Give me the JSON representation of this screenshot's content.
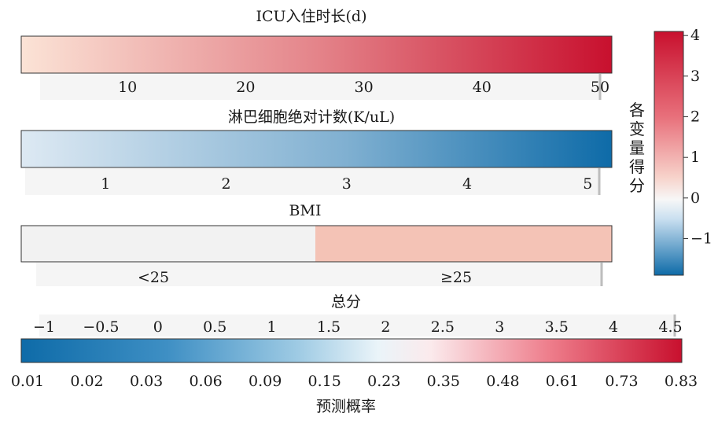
{
  "chart_data": {
    "type": "heatmap",
    "variables": [
      {
        "title": "ICU入住时长(d)",
        "scale": "continuous",
        "range": [
          1,
          51
        ],
        "ticks": [
          10,
          20,
          30,
          40,
          50
        ],
        "score_range": [
          0,
          4
        ],
        "color_start": "#fbe3d6",
        "color_end": "#c8102e"
      },
      {
        "title": "淋巴细胞绝对计数(K/uL)",
        "scale": "continuous",
        "range": [
          0.3,
          5.2
        ],
        "ticks": [
          1,
          2,
          3,
          4,
          5
        ],
        "score_range": [
          0,
          -1.9
        ],
        "color_start": "#dde9f3",
        "color_end": "#0e6ba8"
      },
      {
        "title": "BMI",
        "scale": "categorical",
        "categories": [
          "<25",
          "≥25"
        ],
        "scores": [
          0,
          0.5
        ],
        "colors": [
          "#f2f2f2",
          "#f4c3b6"
        ]
      }
    ],
    "total": {
      "title": "总分",
      "ticks": [
        "−1",
        "−0.5",
        "0",
        "0.5",
        "1",
        "1.5",
        "2",
        "2.5",
        "3",
        "3.5",
        "4",
        "4.5"
      ],
      "range": [
        -1.2,
        4.6
      ]
    },
    "probability": {
      "title": "预测概率",
      "ticks": [
        "0.01",
        "0.02",
        "0.03",
        "0.06",
        "0.09",
        "0.15",
        "0.23",
        "0.35",
        "0.48",
        "0.61",
        "0.73",
        "0.83"
      ]
    },
    "colorbar": {
      "title": "各变量得分",
      "ticks": [
        "4",
        "3",
        "2",
        "1",
        "0",
        "−1"
      ],
      "values": [
        4,
        3,
        2,
        1,
        0,
        -1
      ],
      "range": [
        -1.9,
        4.1
      ]
    },
    "colors": {
      "red": "#c8102e",
      "blue": "#0e6ba8",
      "neutral": "#f7f7f7"
    }
  }
}
